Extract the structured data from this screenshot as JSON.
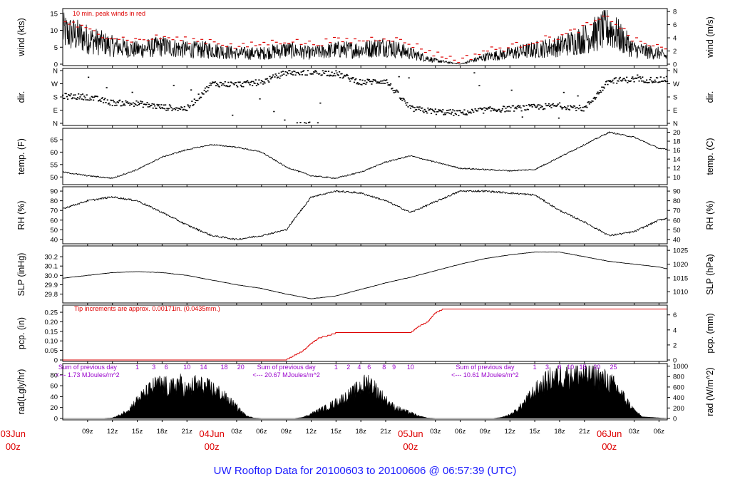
{
  "title": "UW Rooftop Data for 20100603  to  20100606 @ 06:57:39  (UTC)",
  "colors": {
    "trace": "#000000",
    "peak": "#dd0000",
    "precip": "#dd0000",
    "annotation": "#9900cc",
    "date_label": "#dd0000",
    "title": "#1a1aff"
  },
  "time_axis": {
    "tick_labels": [
      "09z",
      "12z",
      "15z",
      "18z",
      "21z",
      "03z",
      "06z",
      "09z",
      "12z",
      "15z",
      "18z",
      "21z",
      "03z",
      "06z",
      "09z",
      "12z",
      "15z",
      "18z",
      "21z",
      "03z",
      "06z"
    ],
    "tick_hours": [
      9,
      12,
      15,
      18,
      21,
      27,
      30,
      33,
      36,
      39,
      42,
      45,
      51,
      54,
      57,
      60,
      63,
      66,
      69,
      75,
      78
    ],
    "date_labels": [
      {
        "day": "03Jun",
        "hour_label": "00z",
        "hour": 0
      },
      {
        "day": "04Jun",
        "hour_label": "00z",
        "hour": 24
      },
      {
        "day": "05Jun",
        "hour_label": "00z",
        "hour": 48
      },
      {
        "day": "06Jun",
        "hour_label": "00z",
        "hour": 72
      }
    ],
    "range_hours": [
      6,
      79
    ]
  },
  "chart_data": [
    {
      "type": "line",
      "panel": "wind",
      "ylabel": "wind (kts)",
      "ylabel_right": "wind (m/s)",
      "ylim": [
        0,
        16
      ],
      "yticks": [
        0,
        5,
        10,
        15
      ],
      "yticks_right_ms": [
        0,
        2,
        4,
        6,
        8
      ],
      "annotation": "10 min. peak winds in red",
      "x_hours": [
        6,
        9,
        12,
        15,
        18,
        21,
        24,
        27,
        30,
        33,
        36,
        39,
        42,
        45,
        48,
        51,
        54,
        57,
        60,
        63,
        66,
        69,
        72,
        75,
        78,
        79
      ],
      "series": [
        {
          "name": "",
          "values": [
            9,
            7,
            5,
            4,
            5,
            4,
            4,
            3,
            3,
            4,
            3,
            4,
            4,
            5,
            3,
            1,
            0,
            2,
            3,
            4,
            5,
            7,
            10,
            4,
            3,
            2
          ]
        },
        {
          "name": "10 min. peak winds",
          "values": [
            13,
            10,
            8,
            7,
            8,
            7,
            7,
            5,
            6,
            7,
            6,
            7,
            7,
            8,
            6,
            3,
            1,
            4,
            5,
            7,
            8,
            11,
            14,
            7,
            5,
            4
          ]
        }
      ]
    },
    {
      "type": "scatter",
      "panel": "direction",
      "ylabel": "dir.",
      "ylabel_right": "dir.",
      "ytick_labels": [
        "N",
        "E",
        "S",
        "W",
        "N"
      ],
      "ytick_degrees": [
        0,
        90,
        180,
        270,
        360
      ],
      "ylim": [
        0,
        360
      ],
      "x_hours": [
        6,
        9,
        12,
        15,
        18,
        21,
        24,
        27,
        30,
        33,
        36,
        39,
        42,
        45,
        48,
        51,
        54,
        57,
        60,
        63,
        66,
        69,
        72,
        75,
        78,
        79
      ],
      "values": [
        185,
        180,
        140,
        135,
        110,
        100,
        270,
        265,
        280,
        345,
        350,
        340,
        280,
        290,
        100,
        80,
        70,
        90,
        100,
        110,
        120,
        100,
        290,
        300,
        295,
        300
      ]
    },
    {
      "type": "line",
      "panel": "temperature",
      "ylabel": "temp. (F)",
      "ylabel_right": "temp. (C)",
      "ylim": [
        47.5,
        69
      ],
      "yticks": [
        50,
        55,
        60,
        65
      ],
      "yticks_right_c": [
        10,
        12,
        14,
        16,
        18,
        20
      ],
      "x_hours": [
        6,
        9,
        12,
        15,
        18,
        21,
        24,
        27,
        30,
        33,
        36,
        39,
        42,
        45,
        48,
        51,
        54,
        57,
        60,
        63,
        66,
        69,
        72,
        75,
        78,
        79
      ],
      "values": [
        52,
        50.5,
        49.5,
        53,
        58,
        61,
        63,
        62,
        60,
        54,
        50.5,
        49.5,
        52,
        56,
        58.5,
        56,
        53.5,
        53,
        52.5,
        53,
        58,
        63,
        68,
        66,
        61.5,
        61
      ]
    },
    {
      "type": "line",
      "panel": "relative-humidity",
      "ylabel": "RH (%)",
      "ylabel_right": "RH (%)",
      "ylim": [
        37,
        93
      ],
      "yticks": [
        40,
        50,
        60,
        70,
        80,
        90
      ],
      "x_hours": [
        6,
        9,
        12,
        15,
        18,
        21,
        24,
        27,
        30,
        33,
        36,
        39,
        42,
        45,
        48,
        51,
        54,
        57,
        60,
        63,
        66,
        69,
        72,
        75,
        78,
        79
      ],
      "values": [
        72,
        80,
        84,
        80,
        68,
        55,
        44,
        40,
        44,
        50,
        84,
        90,
        88,
        80,
        68,
        79,
        90,
        90,
        88,
        86,
        70,
        58,
        44,
        48,
        60,
        62
      ]
    },
    {
      "type": "line",
      "panel": "sea-level-pressure",
      "ylabel": "SLP (inHg)",
      "ylabel_right": "SLP (hPa)",
      "ylim": [
        29.72,
        30.3
      ],
      "yticks": [
        29.8,
        29.9,
        30.0,
        30.1,
        30.2
      ],
      "yticks_right_hpa": [
        1010,
        1015,
        1020,
        1025
      ],
      "x_hours": [
        6,
        9,
        12,
        15,
        18,
        21,
        24,
        27,
        30,
        33,
        36,
        39,
        42,
        45,
        48,
        51,
        54,
        57,
        60,
        63,
        66,
        69,
        72,
        75,
        78,
        79
      ],
      "values": [
        29.97,
        30.0,
        30.03,
        30.04,
        30.03,
        30.0,
        29.95,
        29.9,
        29.86,
        29.8,
        29.75,
        29.78,
        29.85,
        29.92,
        29.98,
        30.05,
        30.12,
        30.18,
        30.22,
        30.25,
        30.25,
        30.2,
        30.15,
        30.12,
        30.09,
        30.07
      ]
    },
    {
      "type": "line",
      "panel": "precipitation",
      "ylabel": "pcp. (in)",
      "ylabel_right": "pcp. (mm)",
      "ylim": [
        0,
        0.28
      ],
      "yticks": [
        0,
        0.05,
        0.1,
        0.15,
        0.2,
        0.25
      ],
      "yticks_right_mm": [
        0,
        2,
        4,
        6
      ],
      "annotation": "Tip increments are approx. 0.00171in. (0.0435mm.)",
      "x_hours": [
        6,
        30,
        33,
        35,
        36,
        37,
        38,
        39,
        42,
        45,
        48,
        49,
        50,
        51,
        52,
        79
      ],
      "values": [
        0,
        0,
        0.005,
        0.05,
        0.09,
        0.12,
        0.13,
        0.145,
        0.145,
        0.145,
        0.145,
        0.18,
        0.2,
        0.25,
        0.27,
        0.27
      ]
    },
    {
      "type": "area",
      "panel": "radiation",
      "ylabel": "rad(Lgly/hr)",
      "ylabel_right": "rad (W/m^2)",
      "ylim": [
        0,
        98
      ],
      "yticks": [
        0,
        20,
        40,
        60,
        80
      ],
      "yticks_right_wm2": [
        0,
        200,
        400,
        600,
        800,
        1000
      ],
      "annotations": [
        {
          "line1": "Sum of previous day",
          "line2": "<--- 1.73 MJoules/m^2",
          "hour": 9
        },
        {
          "line1": "Sum of previous day",
          "line2": "<--- 20.67 MJoules/m^2",
          "hour": 33
        },
        {
          "line1": "Sum of previous day",
          "line2": "<--- 10.61 MJoules/m^2",
          "hour": 57
        }
      ],
      "hour_markers": [
        {
          "label": "1",
          "hour": 15
        },
        {
          "label": "3",
          "hour": 17
        },
        {
          "label": "6",
          "hour": 18.5
        },
        {
          "label": "10",
          "hour": 21
        },
        {
          "label": "14",
          "hour": 23
        },
        {
          "label": "18",
          "hour": 25.5
        },
        {
          "label": "20",
          "hour": 27.5
        },
        {
          "label": "1",
          "hour": 39
        },
        {
          "label": "2",
          "hour": 40.5
        },
        {
          "label": "4",
          "hour": 41.8
        },
        {
          "label": "6",
          "hour": 43
        },
        {
          "label": "8",
          "hour": 44.8
        },
        {
          "label": "9",
          "hour": 46
        },
        {
          "label": "10",
          "hour": 48
        },
        {
          "label": "1",
          "hour": 63
        },
        {
          "label": "3",
          "hour": 64.5
        },
        {
          "label": "6",
          "hour": 66
        },
        {
          "label": "10",
          "hour": 67.3
        },
        {
          "label": "15",
          "hour": 68.8
        },
        {
          "label": "20",
          "hour": 70.5
        },
        {
          "label": "25",
          "hour": 72.5
        }
      ],
      "x_hours": [
        6,
        11,
        12,
        13,
        14,
        15,
        16,
        17,
        18,
        19,
        20,
        21,
        22,
        23,
        24,
        25,
        26,
        27,
        28,
        29,
        30,
        34,
        35,
        36,
        37,
        38,
        39,
        40,
        41,
        42,
        43,
        44,
        45,
        46,
        47,
        48,
        49,
        50,
        51,
        58,
        59,
        60,
        61,
        62,
        63,
        64,
        65,
        66,
        67,
        68,
        69,
        70,
        71,
        72,
        73,
        74,
        75,
        76,
        79
      ],
      "values": [
        0,
        0,
        1,
        8,
        20,
        40,
        55,
        70,
        75,
        65,
        80,
        60,
        75,
        70,
        65,
        55,
        40,
        25,
        8,
        1,
        0,
        0,
        2,
        10,
        18,
        25,
        35,
        45,
        55,
        70,
        80,
        60,
        40,
        25,
        18,
        12,
        5,
        1,
        0,
        0,
        2,
        8,
        20,
        40,
        60,
        75,
        88,
        92,
        95,
        97,
        96,
        93,
        88,
        80,
        65,
        40,
        18,
        3,
        0
      ]
    }
  ]
}
